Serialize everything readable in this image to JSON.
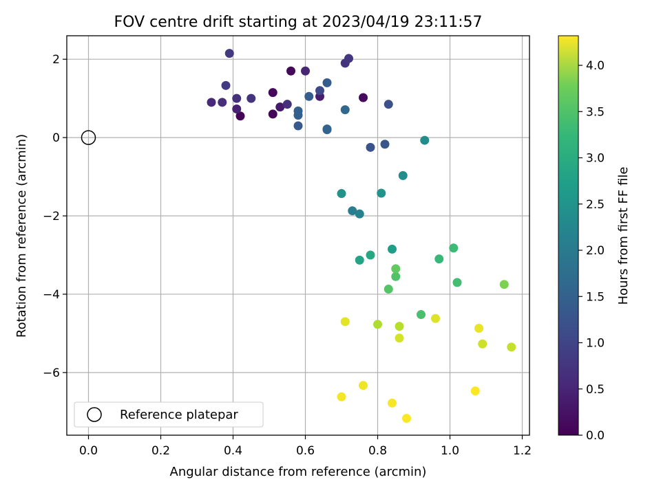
{
  "chart_data": {
    "type": "scatter",
    "title": "FOV centre drift starting at 2023/04/19 23:11:57",
    "xlabel": "Angular distance from reference (arcmin)",
    "ylabel": "Rotation from reference (arcmin)",
    "xlim": [
      -0.06,
      1.22
    ],
    "ylim": [
      -7.6,
      2.6
    ],
    "xticks": [
      0.0,
      0.2,
      0.4,
      0.6,
      0.8,
      1.0,
      1.2
    ],
    "xtick_labels": [
      "0.0",
      "0.2",
      "0.4",
      "0.6",
      "0.8",
      "1.0",
      "1.2"
    ],
    "yticks": [
      2,
      0,
      -2,
      -4,
      -6
    ],
    "ytick_labels": [
      "2",
      "0",
      "−2",
      "−4",
      "−6"
    ],
    "grid": true,
    "colormap": "viridis",
    "colorbar": {
      "label": "Hours from first FF file",
      "range": [
        0.0,
        4.32
      ],
      "ticks": [
        0.0,
        0.5,
        1.0,
        1.5,
        2.0,
        2.5,
        3.0,
        3.5,
        4.0
      ],
      "tick_labels": [
        "0.0",
        "0.5",
        "1.0",
        "1.5",
        "2.0",
        "2.5",
        "3.0",
        "3.5",
        "4.0"
      ]
    },
    "reference": {
      "name": "Reference platepar",
      "x": 0.0,
      "y": 0.0
    },
    "legend": {
      "entries": [
        "Reference platepar"
      ],
      "position": "lower-left"
    },
    "points": [
      {
        "x": 0.42,
        "y": 0.55,
        "c": 0.02
      },
      {
        "x": 0.51,
        "y": 0.6,
        "c": 0.05
      },
      {
        "x": 0.51,
        "y": 1.15,
        "c": 0.08
      },
      {
        "x": 0.56,
        "y": 1.7,
        "c": 0.1
      },
      {
        "x": 0.76,
        "y": 1.02,
        "c": 0.12
      },
      {
        "x": 0.53,
        "y": 0.78,
        "c": 0.3
      },
      {
        "x": 0.64,
        "y": 1.05,
        "c": 0.35
      },
      {
        "x": 0.41,
        "y": 0.73,
        "c": 0.4
      },
      {
        "x": 0.6,
        "y": 1.7,
        "c": 0.45
      },
      {
        "x": 0.34,
        "y": 0.9,
        "c": 0.5
      },
      {
        "x": 0.37,
        "y": 0.9,
        "c": 0.55
      },
      {
        "x": 0.55,
        "y": 0.85,
        "c": 0.6
      },
      {
        "x": 0.41,
        "y": 1.0,
        "c": 0.62
      },
      {
        "x": 0.45,
        "y": 1.0,
        "c": 0.65
      },
      {
        "x": 0.71,
        "y": 1.9,
        "c": 0.65
      },
      {
        "x": 0.72,
        "y": 2.02,
        "c": 0.68
      },
      {
        "x": 0.39,
        "y": 2.15,
        "c": 0.72
      },
      {
        "x": 0.38,
        "y": 1.33,
        "c": 0.75
      },
      {
        "x": 0.64,
        "y": 1.2,
        "c": 0.95
      },
      {
        "x": 0.83,
        "y": 0.85,
        "c": 1.05
      },
      {
        "x": 0.78,
        "y": -0.25,
        "c": 1.1
      },
      {
        "x": 0.82,
        "y": -0.17,
        "c": 1.15
      },
      {
        "x": 0.58,
        "y": 0.3,
        "c": 1.2
      },
      {
        "x": 0.66,
        "y": 1.4,
        "c": 1.25
      },
      {
        "x": 0.61,
        "y": 1.05,
        "c": 1.28
      },
      {
        "x": 0.58,
        "y": 0.68,
        "c": 1.3
      },
      {
        "x": 0.58,
        "y": 0.57,
        "c": 1.32
      },
      {
        "x": 0.66,
        "y": 0.22,
        "c": 1.35
      },
      {
        "x": 0.66,
        "y": 0.2,
        "c": 1.38
      },
      {
        "x": 0.71,
        "y": 0.71,
        "c": 1.45
      },
      {
        "x": 0.73,
        "y": -1.87,
        "c": 1.85
      },
      {
        "x": 0.75,
        "y": -1.95,
        "c": 1.9
      },
      {
        "x": 0.93,
        "y": -0.07,
        "c": 2.1
      },
      {
        "x": 0.87,
        "y": -0.97,
        "c": 2.15
      },
      {
        "x": 0.7,
        "y": -1.43,
        "c": 2.2
      },
      {
        "x": 0.81,
        "y": -1.42,
        "c": 2.22
      },
      {
        "x": 0.84,
        "y": -2.85,
        "c": 2.4
      },
      {
        "x": 0.75,
        "y": -3.13,
        "c": 2.5
      },
      {
        "x": 0.78,
        "y": -3.0,
        "c": 2.6
      },
      {
        "x": 0.97,
        "y": -3.1,
        "c": 2.9
      },
      {
        "x": 1.01,
        "y": -2.82,
        "c": 2.95
      },
      {
        "x": 1.02,
        "y": -3.7,
        "c": 3.0
      },
      {
        "x": 0.92,
        "y": -4.52,
        "c": 3.05
      },
      {
        "x": 0.85,
        "y": -3.55,
        "c": 3.1
      },
      {
        "x": 0.83,
        "y": -3.87,
        "c": 3.15
      },
      {
        "x": 0.85,
        "y": -3.35,
        "c": 3.25
      },
      {
        "x": 1.15,
        "y": -3.75,
        "c": 3.45
      },
      {
        "x": 0.8,
        "y": -4.77,
        "c": 3.8
      },
      {
        "x": 0.86,
        "y": -4.82,
        "c": 3.85
      },
      {
        "x": 1.17,
        "y": -5.35,
        "c": 3.95
      },
      {
        "x": 1.09,
        "y": -5.27,
        "c": 4.0
      },
      {
        "x": 0.86,
        "y": -5.12,
        "c": 4.05
      },
      {
        "x": 0.96,
        "y": -4.62,
        "c": 4.1
      },
      {
        "x": 0.71,
        "y": -4.7,
        "c": 4.15
      },
      {
        "x": 1.08,
        "y": -4.87,
        "c": 4.18
      },
      {
        "x": 0.76,
        "y": -6.33,
        "c": 4.22
      },
      {
        "x": 0.7,
        "y": -6.62,
        "c": 4.25
      },
      {
        "x": 0.84,
        "y": -6.78,
        "c": 4.28
      },
      {
        "x": 0.88,
        "y": -7.17,
        "c": 4.3
      },
      {
        "x": 1.07,
        "y": -6.47,
        "c": 4.32
      }
    ]
  }
}
